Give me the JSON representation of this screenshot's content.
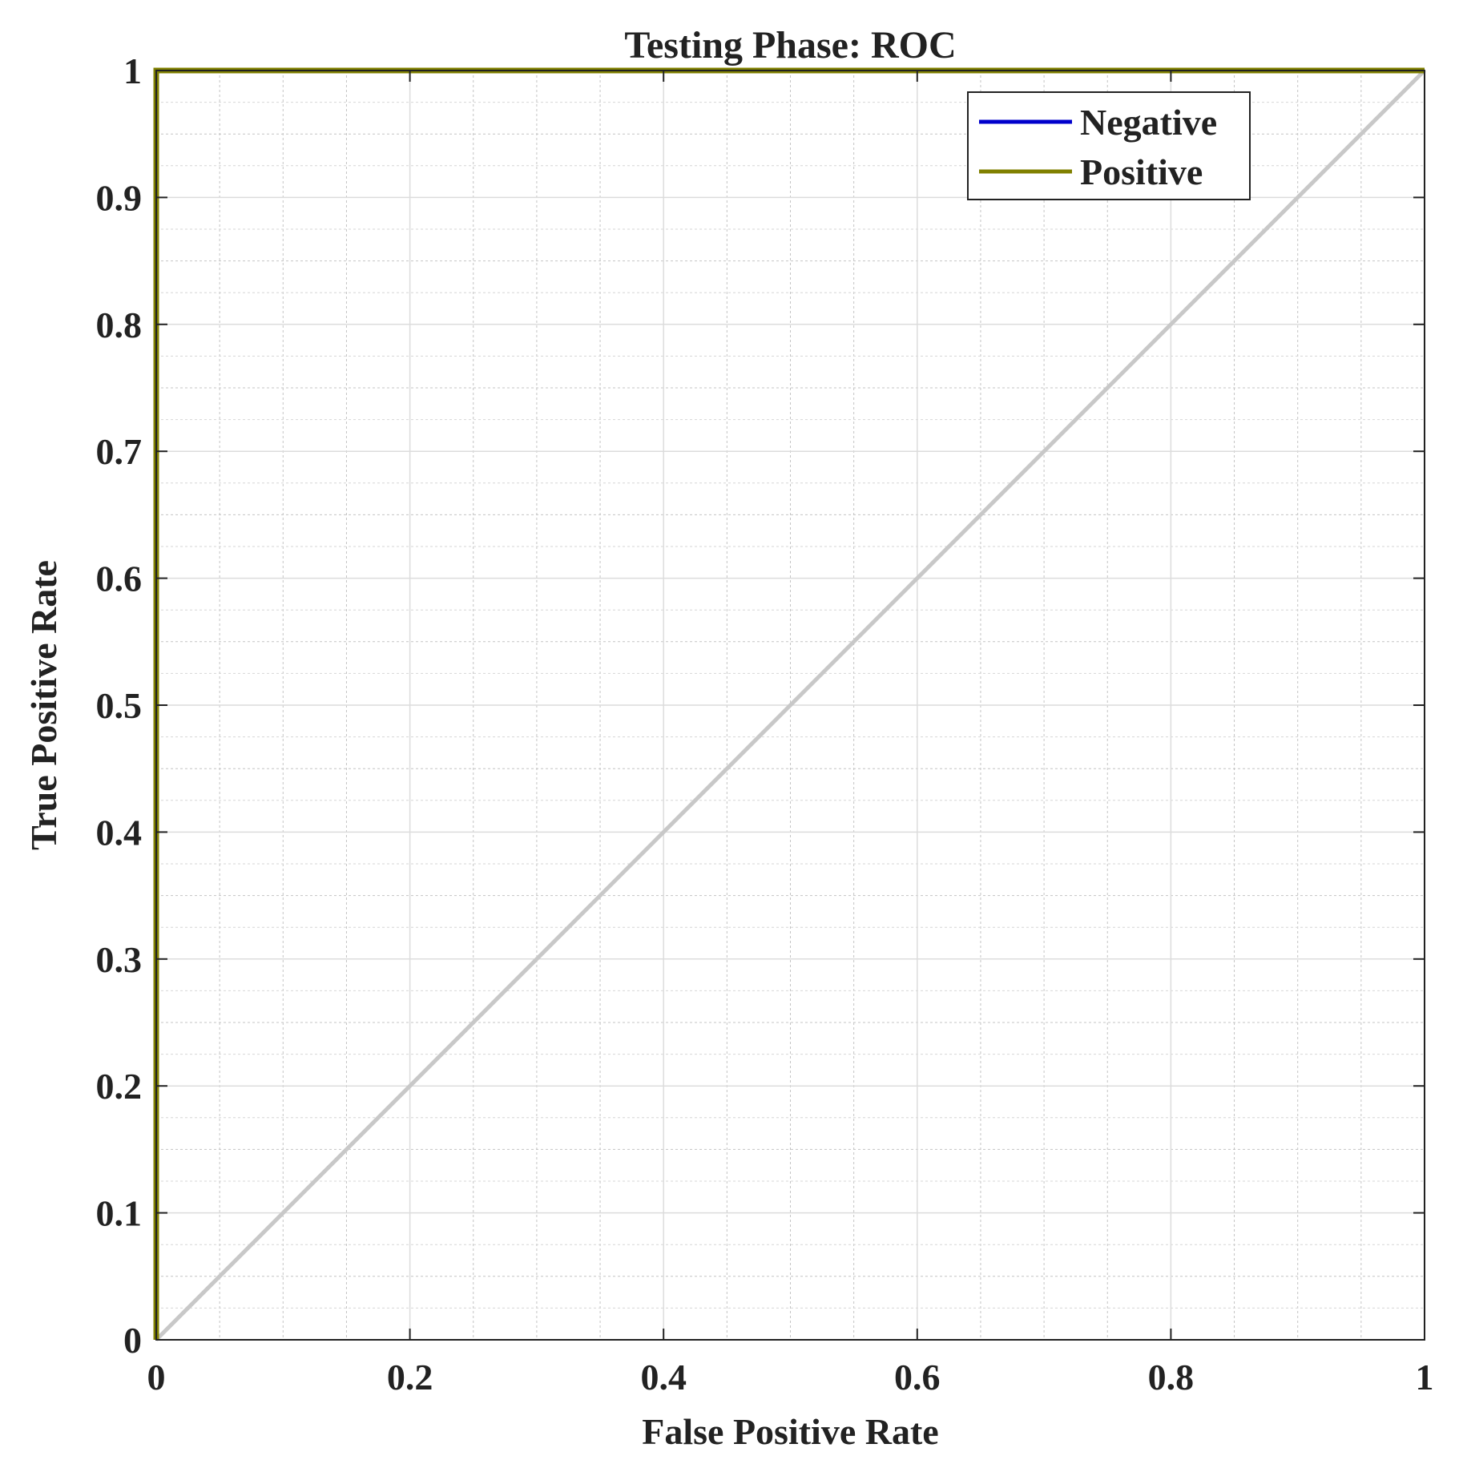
{
  "chart_data": {
    "type": "line",
    "title": "Testing Phase: ROC",
    "xlabel": "False Positive Rate",
    "ylabel": "True Positive Rate",
    "xlim": [
      0,
      1
    ],
    "ylim": [
      0,
      1
    ],
    "xticks": [
      0,
      0.2,
      0.4,
      0.6,
      0.8,
      1
    ],
    "xtick_labels": [
      "0",
      "0.2",
      "0.4",
      "0.6",
      "0.8",
      "1"
    ],
    "yticks": [
      0,
      0.1,
      0.2,
      0.3,
      0.4,
      0.5,
      0.6,
      0.7,
      0.8,
      0.9,
      1
    ],
    "ytick_labels": [
      "0",
      "0.1",
      "0.2",
      "0.3",
      "0.4",
      "0.5",
      "0.6",
      "0.7",
      "0.8",
      "0.9",
      "1"
    ],
    "grid": true,
    "minor_grid": true,
    "legend_position": "top-right",
    "series": [
      {
        "name": "Negative",
        "color": "#0000cc",
        "x": [
          0,
          0,
          1
        ],
        "y": [
          0,
          1,
          1
        ]
      },
      {
        "name": "Positive",
        "color": "#808000",
        "x": [
          0,
          0,
          1
        ],
        "y": [
          0,
          1,
          1
        ]
      }
    ],
    "reference_line": {
      "color": "#c8c8c8",
      "x": [
        0,
        1
      ],
      "y": [
        0,
        1
      ]
    }
  }
}
